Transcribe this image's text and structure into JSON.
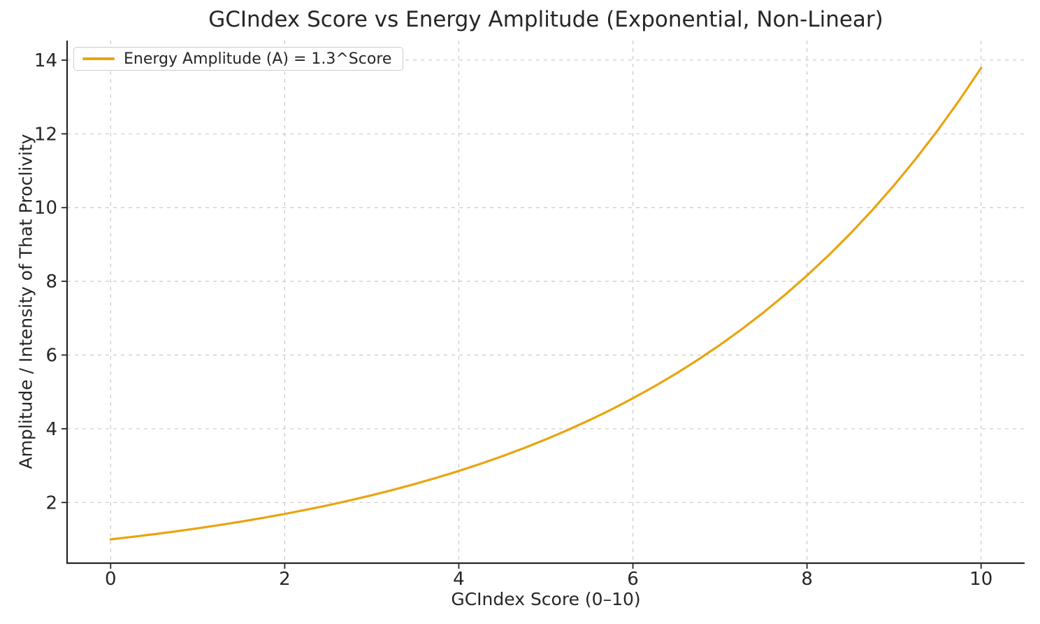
{
  "chart_data": {
    "type": "line",
    "title": "GCIndex Score vs Energy Amplitude (Exponential, Non-Linear)",
    "xlabel": "GCIndex Score (0–10)",
    "ylabel": "Amplitude / Intensity of That Proclivity",
    "legend": [
      "Energy Amplitude (A) = 1.3^Score"
    ],
    "legend_position": "upper left",
    "grid": true,
    "grid_style": "dashed",
    "xlim": [
      -0.5,
      10.5
    ],
    "ylim": [
      0.355,
      14.53
    ],
    "xticks": [
      0,
      2,
      4,
      6,
      8,
      10
    ],
    "yticks": [
      2,
      4,
      6,
      8,
      10,
      12,
      14
    ],
    "colors": {
      "line": "#E9A40F",
      "grid": "#c9c9c9",
      "spine": "#262626",
      "text": "#262626",
      "background": "#ffffff"
    },
    "series": [
      {
        "name": "Energy Amplitude (A) = 1.3^Score",
        "formula": "A = 1.3^Score",
        "color": "#E9A40F",
        "x": [
          0,
          0.25,
          0.5,
          0.75,
          1,
          1.25,
          1.5,
          1.75,
          2,
          2.25,
          2.5,
          2.75,
          3,
          3.25,
          3.5,
          3.75,
          4,
          4.25,
          4.5,
          4.75,
          5,
          5.25,
          5.5,
          5.75,
          6,
          6.25,
          6.5,
          6.75,
          7,
          7.25,
          7.5,
          7.75,
          8,
          8.25,
          8.5,
          8.75,
          9,
          9.25,
          9.5,
          9.75,
          10
        ],
        "y": [
          1.0,
          1.068,
          1.14,
          1.217,
          1.3,
          1.388,
          1.482,
          1.583,
          1.69,
          1.805,
          1.927,
          2.058,
          2.197,
          2.346,
          2.505,
          2.675,
          2.856,
          3.05,
          3.256,
          3.477,
          3.713,
          3.965,
          4.233,
          4.52,
          4.827,
          5.154,
          5.503,
          5.876,
          6.275,
          6.7,
          7.154,
          7.639,
          8.157,
          8.71,
          9.301,
          9.931,
          10.604,
          11.323,
          12.091,
          12.911,
          13.786
        ]
      }
    ]
  }
}
